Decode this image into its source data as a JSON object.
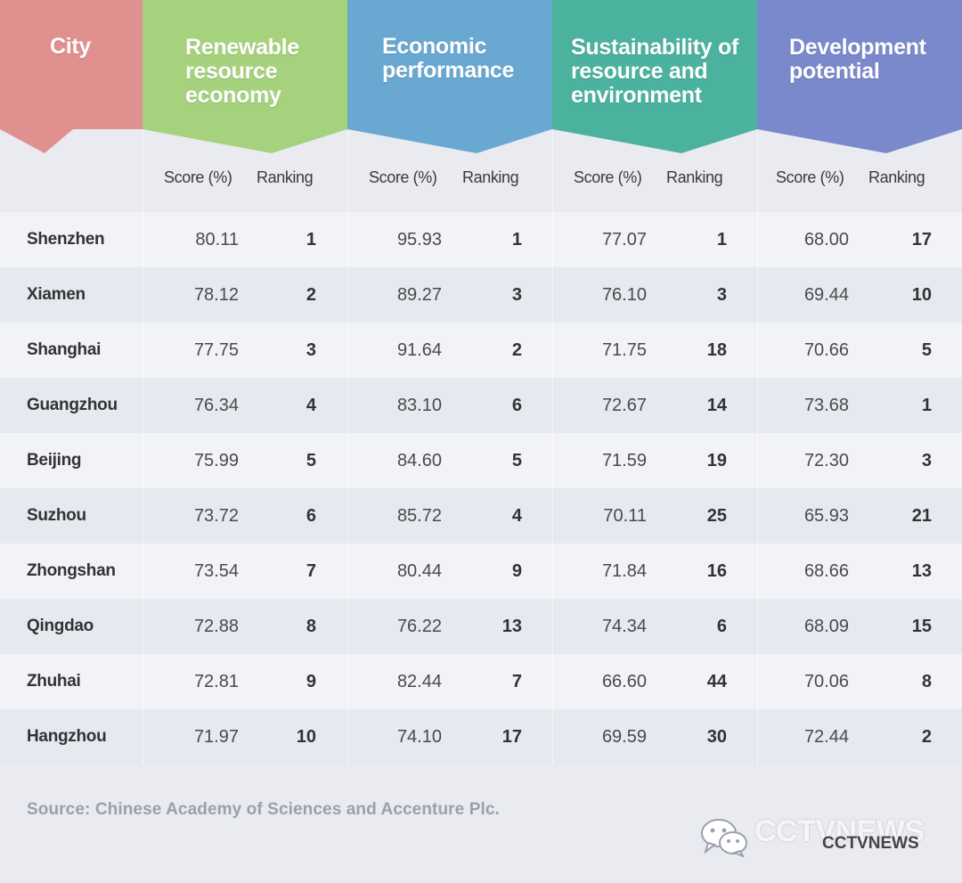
{
  "headers": [
    {
      "title": "City",
      "color": "#e0908f"
    },
    {
      "title": "Renewable resource economy",
      "color": "#a6d17d"
    },
    {
      "title": "Economic performance",
      "color": "#69a8d1"
    },
    {
      "title": "Sustainability of resource and environment",
      "color": "#4bb29e"
    },
    {
      "title": "Development potential",
      "color": "#7a88cc"
    }
  ],
  "sub_labels": {
    "score": "Score (%)",
    "ranking": "Ranking"
  },
  "chart_data": {
    "type": "table",
    "columns": [
      "City",
      "Renewable resource economy",
      "Economic performance",
      "Sustainability of resource and environment",
      "Development potential"
    ],
    "subcolumns": [
      "Score (%)",
      "Ranking"
    ],
    "rows": [
      {
        "city": "Shenzhen",
        "values": [
          [
            "80.11",
            "1"
          ],
          [
            "95.93",
            "1"
          ],
          [
            "77.07",
            "1"
          ],
          [
            "68.00",
            "17"
          ]
        ]
      },
      {
        "city": "Xiamen",
        "values": [
          [
            "78.12",
            "2"
          ],
          [
            "89.27",
            "3"
          ],
          [
            "76.10",
            "3"
          ],
          [
            "69.44",
            "10"
          ]
        ]
      },
      {
        "city": "Shanghai",
        "values": [
          [
            "77.75",
            "3"
          ],
          [
            "91.64",
            "2"
          ],
          [
            "71.75",
            "18"
          ],
          [
            "70.66",
            "5"
          ]
        ]
      },
      {
        "city": "Guangzhou",
        "values": [
          [
            "76.34",
            "4"
          ],
          [
            "83.10",
            "6"
          ],
          [
            "72.67",
            "14"
          ],
          [
            "73.68",
            "1"
          ]
        ]
      },
      {
        "city": "Beijing",
        "values": [
          [
            "75.99",
            "5"
          ],
          [
            "84.60",
            "5"
          ],
          [
            "71.59",
            "19"
          ],
          [
            "72.30",
            "3"
          ]
        ]
      },
      {
        "city": "Suzhou",
        "values": [
          [
            "73.72",
            "6"
          ],
          [
            "85.72",
            "4"
          ],
          [
            "70.11",
            "25"
          ],
          [
            "65.93",
            "21"
          ]
        ]
      },
      {
        "city": "Zhongshan",
        "values": [
          [
            "73.54",
            "7"
          ],
          [
            "80.44",
            "9"
          ],
          [
            "71.84",
            "16"
          ],
          [
            "68.66",
            "13"
          ]
        ]
      },
      {
        "city": "Qingdao",
        "values": [
          [
            "72.88",
            "8"
          ],
          [
            "76.22",
            "13"
          ],
          [
            "74.34",
            "6"
          ],
          [
            "68.09",
            "15"
          ]
        ]
      },
      {
        "city": "Zhuhai",
        "values": [
          [
            "72.81",
            "9"
          ],
          [
            "82.44",
            "7"
          ],
          [
            "66.60",
            "44"
          ],
          [
            "70.06",
            "8"
          ]
        ]
      },
      {
        "city": "Hangzhou",
        "values": [
          [
            "71.97",
            "10"
          ],
          [
            "74.10",
            "17"
          ],
          [
            "69.59",
            "30"
          ],
          [
            "72.44",
            "2"
          ]
        ]
      }
    ]
  },
  "source": "Source: Chinese Academy of Sciences and Accenture Plc.",
  "watermark": {
    "main": "CCTVNEWS",
    "caption": "CCTVNEWS",
    "icon": "wechat-icon"
  }
}
